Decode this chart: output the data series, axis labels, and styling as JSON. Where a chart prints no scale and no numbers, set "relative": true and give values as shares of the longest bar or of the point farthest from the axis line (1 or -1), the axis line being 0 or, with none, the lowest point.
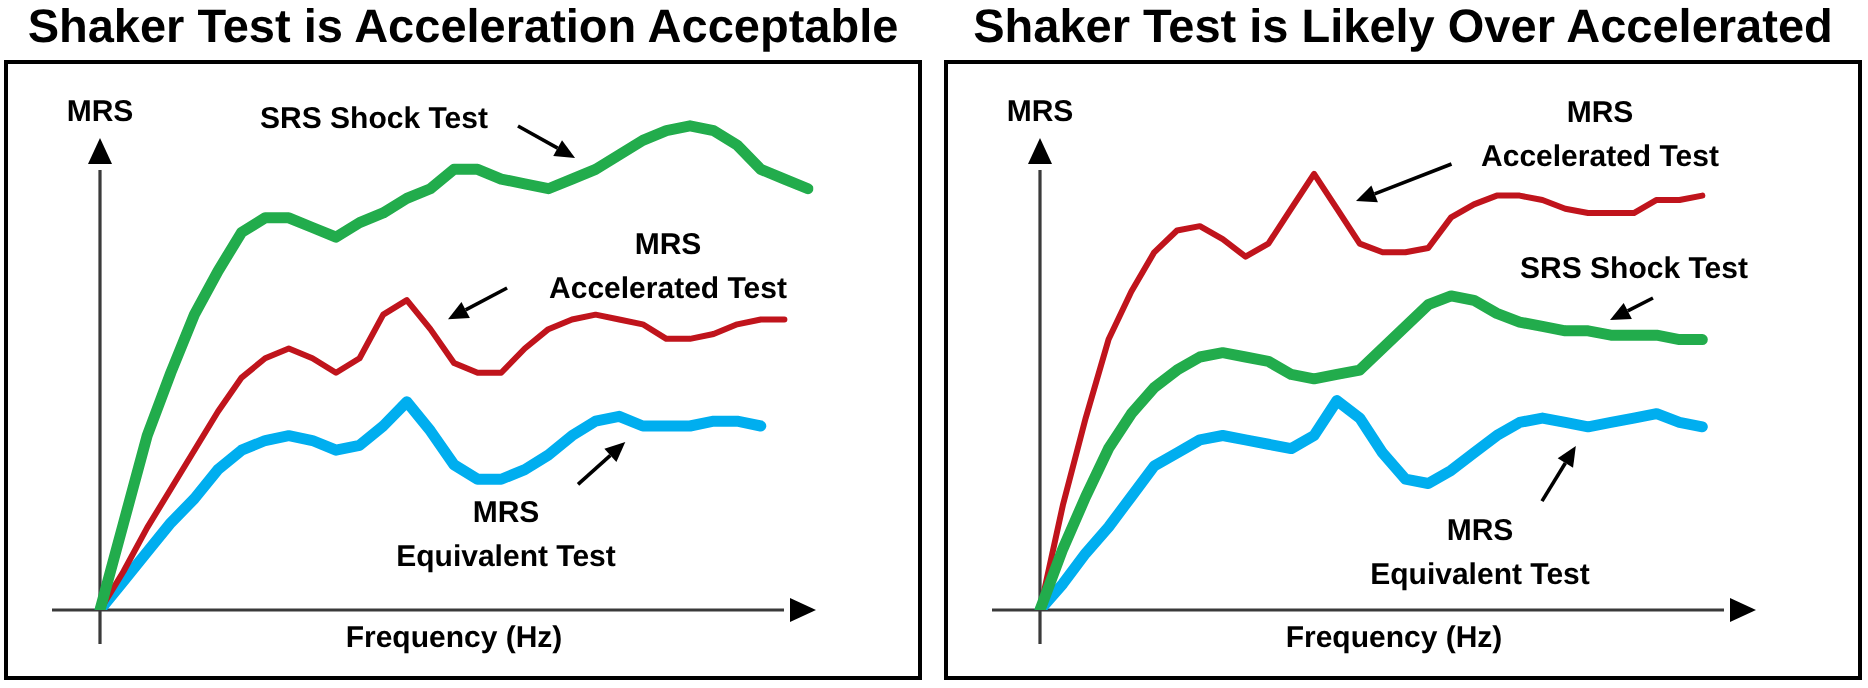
{
  "chart_data": [
    {
      "type": "line",
      "title": "Shaker Test is Acceleration Acceptable",
      "xlabel": "Frequency (Hz)",
      "ylabel": "MRS",
      "relative": true,
      "marker": "none",
      "categories": [
        null,
        null,
        null,
        null,
        null,
        null,
        null,
        null,
        null,
        null,
        null,
        null,
        null,
        null,
        null,
        null,
        null,
        null,
        null,
        null,
        null,
        null,
        null,
        null,
        null,
        null,
        null,
        null,
        null,
        null,
        null
      ],
      "series": [
        {
          "name": "SRS Shock Test",
          "color": "#22ac4c",
          "values": [
            0,
            0.18,
            0.36,
            0.49,
            0.61,
            0.7,
            0.78,
            0.81,
            0.81,
            0.79,
            0.77,
            0.8,
            0.82,
            0.85,
            0.87,
            0.91,
            0.91,
            0.89,
            0.88,
            0.87,
            0.89,
            0.91,
            0.94,
            0.97,
            0.99,
            1,
            0.99,
            0.96,
            0.91,
            0.89,
            0.87
          ]
        },
        {
          "name": "MRS\nAccelerated Test",
          "color": "#c0141c",
          "values": [
            0,
            0.08,
            0.17,
            0.25,
            0.33,
            0.41,
            0.48,
            0.52,
            0.54,
            0.52,
            0.49,
            0.52,
            0.61,
            0.64,
            0.58,
            0.51,
            0.49,
            0.49,
            0.54,
            0.58,
            0.6,
            0.61,
            0.6,
            0.59,
            0.56,
            0.56,
            0.57,
            0.59,
            0.6,
            0.6,
            null
          ]
        },
        {
          "name": "MRS\nEquivalent Test",
          "color": "#00aeef",
          "values": [
            0,
            0.06,
            0.12,
            0.18,
            0.23,
            0.29,
            0.33,
            0.35,
            0.36,
            0.35,
            0.33,
            0.34,
            0.38,
            0.43,
            0.37,
            0.3,
            0.27,
            0.27,
            0.29,
            0.32,
            0.36,
            0.39,
            0.4,
            0.38,
            0.38,
            0.38,
            0.39,
            0.39,
            0.38,
            null,
            null
          ]
        }
      ]
    },
    {
      "type": "line",
      "title": "Shaker Test is Likely Over Accelerated",
      "xlabel": "Frequency (Hz)",
      "ylabel": "MRS",
      "relative": true,
      "marker": "none",
      "categories": [
        null,
        null,
        null,
        null,
        null,
        null,
        null,
        null,
        null,
        null,
        null,
        null,
        null,
        null,
        null,
        null,
        null,
        null,
        null,
        null,
        null,
        null,
        null,
        null,
        null,
        null,
        null,
        null,
        null,
        null,
        null,
        null
      ],
      "series": [
        {
          "name": "SRS Shock Test",
          "color": "#22ac4c",
          "values": [
            0,
            0.14,
            0.26,
            0.37,
            0.45,
            0.51,
            0.55,
            0.58,
            0.59,
            0.58,
            0.57,
            0.54,
            0.53,
            0.54,
            0.55,
            0.6,
            0.65,
            0.7,
            0.72,
            0.71,
            0.68,
            0.66,
            0.65,
            0.64,
            0.64,
            0.63,
            0.63,
            0.63,
            0.62,
            0.62,
            null,
            null
          ]
        },
        {
          "name": "MRS\nAccelerated Test",
          "color": "#c0141c",
          "values": [
            0,
            0.24,
            0.44,
            0.62,
            0.73,
            0.82,
            0.87,
            0.88,
            0.85,
            0.81,
            0.84,
            0.92,
            1,
            0.92,
            0.84,
            0.82,
            0.82,
            0.83,
            0.9,
            0.93,
            0.95,
            0.95,
            0.94,
            0.92,
            0.91,
            0.91,
            0.91,
            0.94,
            0.94,
            0.95,
            null,
            null
          ]
        },
        {
          "name": "MRS\nEquivalent Test",
          "color": "#00aeef",
          "values": [
            0,
            0.06,
            0.13,
            0.19,
            0.26,
            0.33,
            0.36,
            0.39,
            0.4,
            0.39,
            0.38,
            0.37,
            0.4,
            0.48,
            0.44,
            0.36,
            0.3,
            0.29,
            0.32,
            0.36,
            0.4,
            0.43,
            0.44,
            0.43,
            0.42,
            0.43,
            0.44,
            0.45,
            0.43,
            0.42,
            null,
            null
          ]
        }
      ]
    }
  ]
}
